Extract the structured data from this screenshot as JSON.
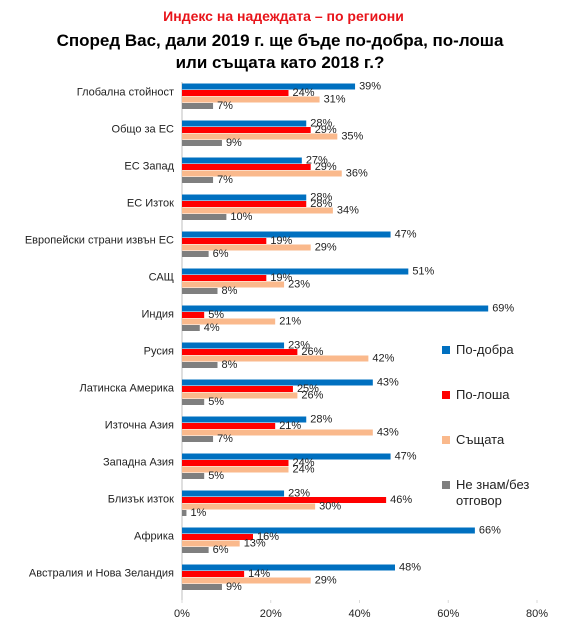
{
  "chart_data": {
    "type": "hbar-grouped",
    "title": "Индекс на надеждата – по региони",
    "subtitle": "Според Вас, дали 2019 г. ще бъде по-добра, по-лоша или същата като 2018 г.?",
    "categories": [
      "Глобална стойност",
      "Общо за ЕС",
      "ЕС Запад",
      "ЕС Изток",
      "Европейски страни извън ЕС",
      "САЩ",
      "Индия",
      "Русия",
      "Латинска Америка",
      "Източна Азия",
      "Западна Азия",
      "Близък изток",
      "Африка",
      "Австралия и Нова Зеландия"
    ],
    "series": [
      {
        "name": "По-добра",
        "color": "#0070c0",
        "values": [
          39,
          28,
          27,
          28,
          47,
          51,
          69,
          23,
          43,
          28,
          47,
          23,
          66,
          48
        ],
        "value_labels": [
          "39%",
          "28%",
          "27%",
          "28%",
          "47%",
          "51%",
          "69%",
          "23%",
          "43%",
          "28%",
          "47%",
          "23%",
          "66%",
          "48%"
        ]
      },
      {
        "name": "По-лоша",
        "color": "#ff0000",
        "values": [
          24,
          29,
          29,
          28,
          19,
          19,
          5,
          26,
          25,
          21,
          24,
          46,
          16,
          14
        ],
        "value_labels": [
          "24%",
          "29%",
          "29%",
          "28%",
          "19%",
          "19%",
          "5%",
          "26%",
          "25%",
          "21%",
          "24%",
          "46%",
          "16%",
          "14%"
        ]
      },
      {
        "name": "Същата",
        "color": "#fab98c",
        "values": [
          31,
          35,
          36,
          34,
          29,
          23,
          21,
          42,
          26,
          43,
          24,
          30,
          13,
          29
        ],
        "value_labels": [
          "31%",
          "35%",
          "36%",
          "34%",
          "29%",
          "23%",
          "21%",
          "42%",
          "26%",
          "43%",
          "24%",
          "30%",
          "13%",
          "29%"
        ]
      },
      {
        "name": "Не знам/без отговор",
        "color": "#7f7f7f",
        "values": [
          7,
          9,
          7,
          10,
          6,
          8,
          4,
          8,
          5,
          7,
          5,
          1,
          6,
          9
        ],
        "value_labels": [
          "7%",
          "9%",
          "7%",
          "10%",
          "6%",
          "8%",
          "4%",
          "8%",
          "5%",
          "7%",
          "5%",
          "1%",
          "6%",
          "9%"
        ]
      }
    ],
    "xlim": [
      0,
      80
    ],
    "xticks": [
      {
        "value": 0,
        "label": "0%"
      },
      {
        "value": 20,
        "label": "20%"
      },
      {
        "value": 40,
        "label": "40%"
      },
      {
        "value": 60,
        "label": "60%"
      },
      {
        "value": 80,
        "label": "80%"
      }
    ],
    "legend": "right"
  }
}
